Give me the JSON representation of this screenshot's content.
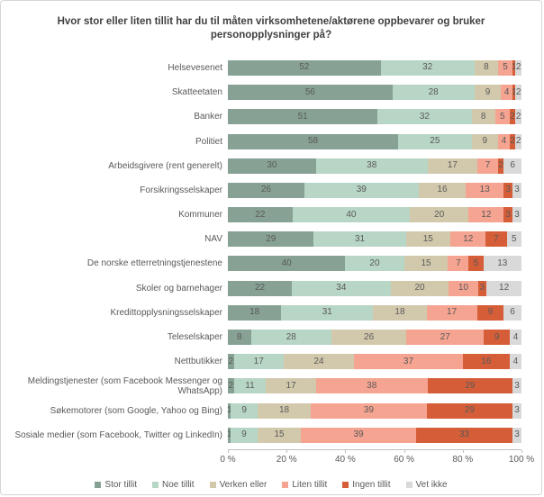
{
  "chart_data": {
    "type": "bar",
    "orientation": "horizontal",
    "stacked": true,
    "title": "Hvor stor eller liten tillit har du til måten virksomhetene/aktørene oppbevarer og bruker personopplysninger på?",
    "categories": [
      "Helsevesenet",
      "Skatteetaten",
      "Banker",
      "Politiet",
      "Arbeidsgivere (rent generelt)",
      "Forsikringsselskaper",
      "Kommuner",
      "NAV",
      "De norske etterretningstjenestene",
      "Skoler og barnehager",
      "Kredittopplysningsselskaper",
      "Teleselskaper",
      "Nettbutikker",
      "Meldingstjenester (som Facebook Messenger og WhatsApp)",
      "Søkemotorer (som Google, Yahoo og Bing)",
      "Sosiale medier (som Facebook, Twitter og LinkedIn)"
    ],
    "series": [
      {
        "name": "Stor tillit",
        "color": "#87a294",
        "values": [
          52,
          56,
          51,
          58,
          30,
          26,
          22,
          29,
          40,
          22,
          18,
          8,
          2,
          2,
          1,
          1
        ]
      },
      {
        "name": "Noe tillit",
        "color": "#b8d6c5",
        "values": [
          32,
          28,
          32,
          25,
          38,
          39,
          40,
          31,
          20,
          34,
          31,
          28,
          17,
          11,
          9,
          9
        ]
      },
      {
        "name": "Verken eller",
        "color": "#d2c9ac",
        "values": [
          8,
          9,
          8,
          9,
          17,
          16,
          20,
          15,
          15,
          20,
          18,
          26,
          24,
          17,
          18,
          15
        ]
      },
      {
        "name": "Liten tillit",
        "color": "#f5a491",
        "values": [
          5,
          4,
          5,
          4,
          7,
          13,
          12,
          12,
          7,
          10,
          17,
          27,
          37,
          38,
          39,
          39
        ]
      },
      {
        "name": "Ingen tillit",
        "color": "#d55e38",
        "values": [
          1,
          1,
          2,
          2,
          2,
          3,
          3,
          7,
          5,
          3,
          9,
          9,
          16,
          29,
          29,
          33
        ]
      },
      {
        "name": "Vet ikke",
        "color": "#d9d9d9",
        "values": [
          2,
          2,
          2,
          2,
          6,
          3,
          3,
          5,
          13,
          12,
          6,
          4,
          4,
          3,
          3,
          3
        ]
      }
    ],
    "x_ticks": [
      "0 %",
      "20 %",
      "40 %",
      "60 %",
      "80 %",
      "100 %"
    ],
    "xlim": [
      0,
      100
    ],
    "grid": false,
    "legend_position": "bottom",
    "value_labels": "inside-center"
  }
}
